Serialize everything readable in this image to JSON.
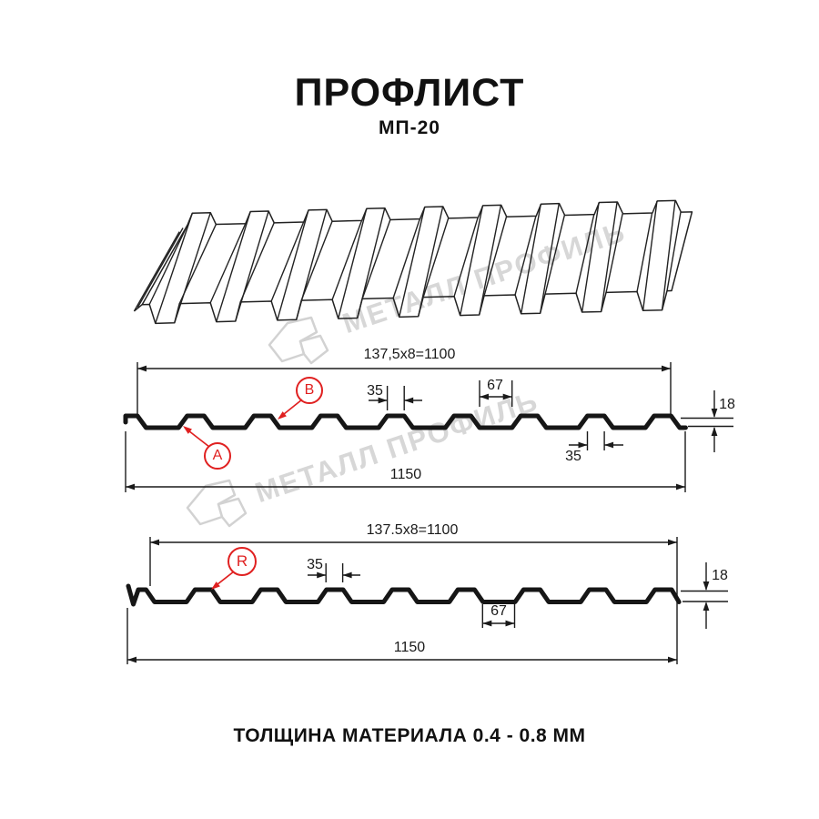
{
  "title": "ПРОФЛИСТ",
  "subtitle": "МП-20",
  "footer": "ТОЛЩИНА МАТЕРИАЛА 0.4 - 0.8 ММ",
  "watermark": {
    "text": "МЕТАЛЛ ПРОФИЛЬ"
  },
  "colors": {
    "accent_red": "#e02020",
    "line": "#1a1a1a",
    "watermark_gray": "#d7d7d7"
  },
  "section_top": {
    "working_width": "137,5x8=1100",
    "rib_top_width": "35",
    "valley_width": "67",
    "height": "18",
    "rib_top_width_bottom": "35",
    "overall_width": "1150",
    "point_labels": {
      "valley": "A",
      "rib": "B"
    }
  },
  "section_bottom": {
    "working_width": "137.5x8=1100",
    "rib_top_width": "35",
    "height": "18",
    "valley_width": "67",
    "overall_width": "1150",
    "point_labels": {
      "rib": "R"
    }
  }
}
